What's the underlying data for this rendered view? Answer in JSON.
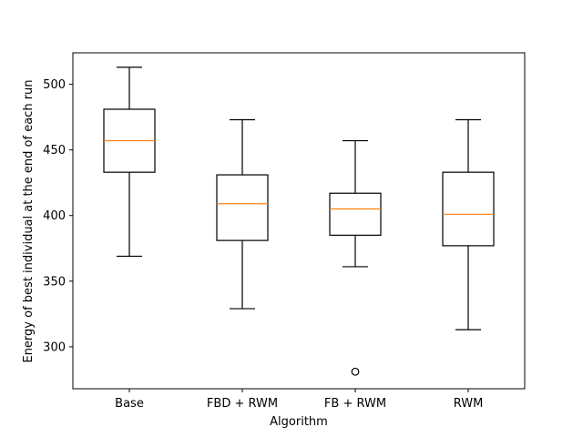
{
  "chart_data": {
    "type": "box",
    "title": "",
    "xlabel": "Algorithm",
    "ylabel": "Energy of best individual at the end of each run",
    "ylim": [
      268,
      524
    ],
    "yticks": [
      300,
      350,
      400,
      450,
      500
    ],
    "ytick_labels": [
      "300",
      "350",
      "400",
      "450",
      "500"
    ],
    "grid": false,
    "categories": [
      "Base",
      "FBD + RWM",
      "FB + RWM",
      "RWM"
    ],
    "boxes": [
      {
        "name": "Base",
        "whisker_low": 369,
        "q1": 433,
        "median": 457,
        "q3": 481,
        "whisker_high": 513,
        "outliers": []
      },
      {
        "name": "FBD + RWM",
        "whisker_low": 329,
        "q1": 381,
        "median": 409,
        "q3": 431,
        "whisker_high": 473,
        "outliers": []
      },
      {
        "name": "FB + RWM",
        "whisker_low": 361,
        "q1": 385,
        "median": 405,
        "q3": 417,
        "whisker_high": 457,
        "outliers": [
          281
        ]
      },
      {
        "name": "RWM",
        "whisker_low": 313,
        "q1": 377,
        "median": 401,
        "q3": 433,
        "whisker_high": 473,
        "outliers": []
      }
    ],
    "colors": {
      "box": "#000000",
      "median": "#ff7f0e",
      "axes": "#000000"
    }
  }
}
